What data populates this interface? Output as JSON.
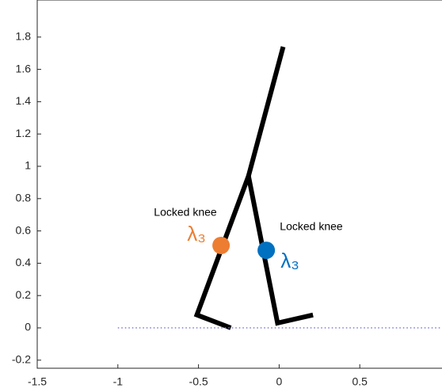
{
  "chart_data": {
    "type": "line",
    "xlim": [
      -1.5,
      1
    ],
    "ylim": [
      -0.25,
      2
    ],
    "xticks": [
      -1.5,
      -1,
      -0.5,
      0,
      0.5
    ],
    "yticks": [
      -0.2,
      0,
      0.2,
      0.4,
      0.6,
      0.8,
      1,
      1.2,
      1.4,
      1.6,
      1.8
    ],
    "series": [
      {
        "style": "solid",
        "color": "#000000",
        "x": [
          -0.3,
          -0.51,
          -0.19,
          -0.01,
          0.21
        ],
        "values": [
          0,
          0.08,
          0.94,
          0.03,
          0.08
        ]
      },
      {
        "style": "solid",
        "color": "#000000",
        "x": [
          -0.19,
          0.025
        ],
        "values": [
          0.94,
          1.74
        ]
      },
      {
        "style": "dotted",
        "color": "#7b7bdb",
        "x": [
          -1,
          1
        ],
        "values": [
          0,
          0
        ]
      },
      {
        "style": "marker",
        "color": "#ed7d31",
        "x": [
          -0.36
        ],
        "values": [
          0.51
        ]
      },
      {
        "style": "marker",
        "color": "#0070c0",
        "x": [
          -0.08
        ],
        "values": [
          0.48
        ]
      }
    ],
    "annotations": [
      {
        "text": "Locked knee",
        "color": "#000000"
      },
      {
        "text": "Locked knee",
        "color": "#000000"
      },
      {
        "text": "λ₃",
        "color": "#ed7d31"
      },
      {
        "text": "λ₃",
        "color": "#0070c0"
      }
    ]
  }
}
